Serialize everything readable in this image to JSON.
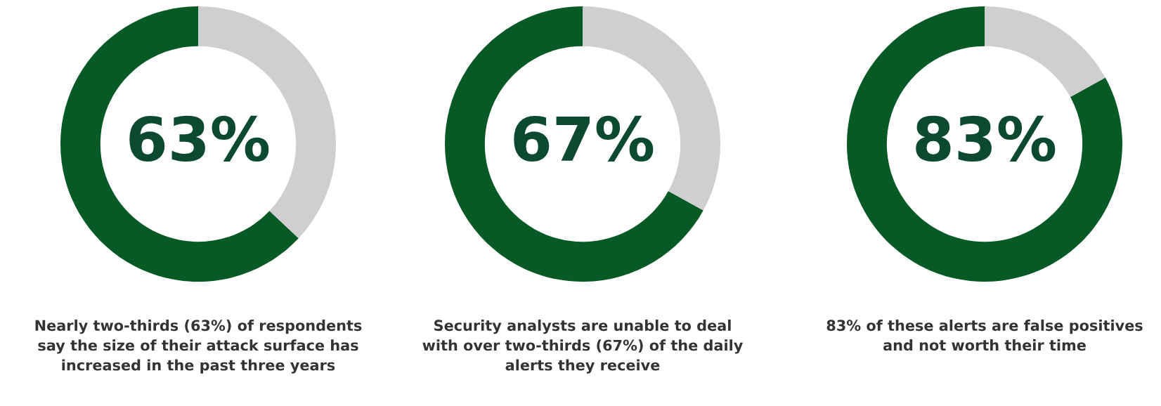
{
  "chart_data": [
    {
      "type": "donut",
      "categories": [
        null,
        null
      ],
      "values": [
        63,
        37
      ],
      "colors": [
        "#075a26",
        "#cfcfcf"
      ],
      "annotations": [
        "63%",
        "Nearly two-thirds (63%) of respondents\nsay the size of their attack surface has\nincreased in the past three years"
      ]
    },
    {
      "type": "donut",
      "categories": [
        null,
        null
      ],
      "values": [
        67,
        33
      ],
      "colors": [
        "#075a26",
        "#cfcfcf"
      ],
      "annotations": [
        "67%",
        "Security analysts are unable to deal\nwith over two-thirds (67%) of the daily\nalerts they receive"
      ]
    },
    {
      "type": "donut",
      "categories": [
        null,
        null
      ],
      "values": [
        83,
        17
      ],
      "colors": [
        "#075a26",
        "#cfcfcf"
      ],
      "annotations": [
        "83%",
        "83% of these alerts are false positives\nand not worth their time"
      ]
    }
  ]
}
